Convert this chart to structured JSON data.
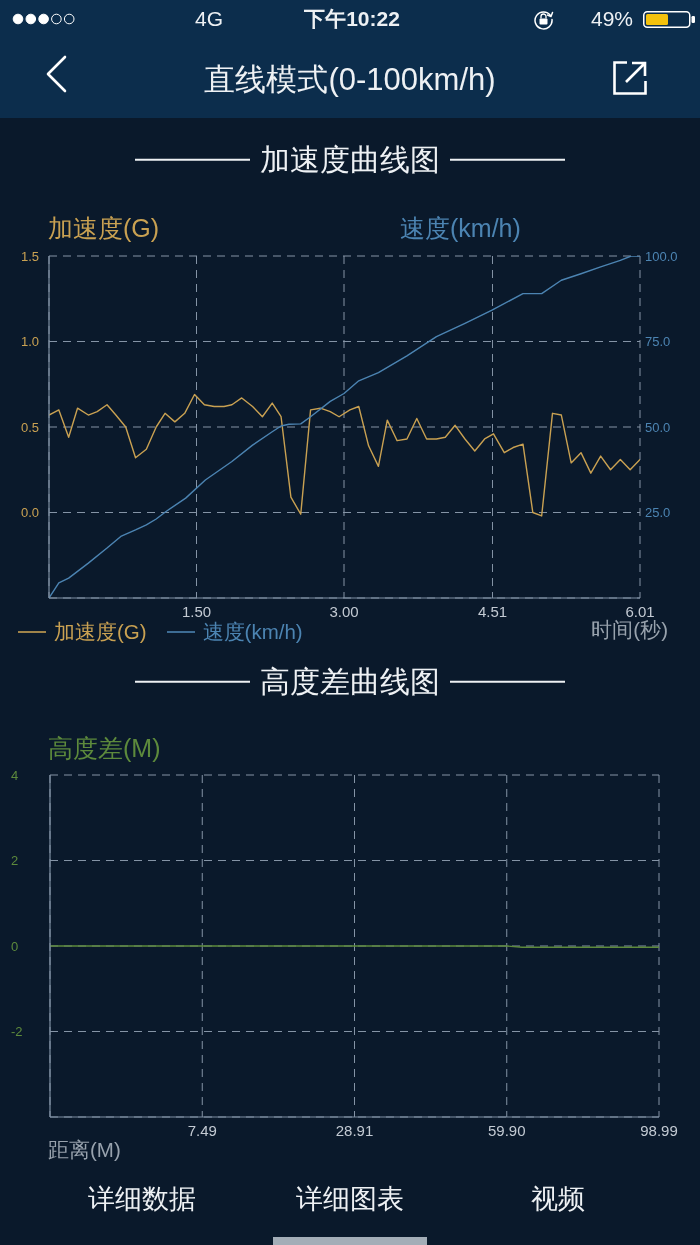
{
  "chart_data": [
    {
      "type": "line",
      "title": "加速度曲线图",
      "xlabel": "时间(秒)",
      "ylabel": "加速度(G)",
      "y2label": "速度(km/h)",
      "xlim": [
        0,
        6.01
      ],
      "xticks": [
        {
          "value": 1.5,
          "label": "1.50"
        },
        {
          "value": 3,
          "label": "3.00"
        },
        4.51,
        6.01
      ],
      "ylim": [
        -0.5,
        1.5
      ],
      "yticks": [
        {
          "value": 0,
          "label": "0.0"
        },
        0.5,
        {
          "value": 1,
          "label": "1.0"
        },
        1.5
      ],
      "y2lim": [
        0,
        100
      ],
      "y2ticks": [
        {
          "value": 25,
          "label": "25.0"
        },
        {
          "value": 50,
          "label": "50.0"
        },
        {
          "value": 75,
          "label": "75.0"
        },
        {
          "value": 100,
          "label": "100.0"
        }
      ],
      "grid": true,
      "legend": "bottom left",
      "series": [
        {
          "name": "加速度(G)",
          "color": "#c9a152",
          "x": [
            0,
            0.1,
            0.2,
            0.29,
            0.4,
            0.49,
            0.59,
            0.68,
            0.78,
            0.88,
            0.99,
            1.09,
            1.18,
            1.28,
            1.38,
            1.48,
            1.58,
            1.68,
            1.78,
            1.86,
            1.96,
            2.07,
            2.17,
            2.27,
            2.36,
            2.46,
            2.56,
            2.66,
            2.76,
            2.86,
            2.95,
            3.06,
            3.15,
            3.25,
            3.35,
            3.44,
            3.54,
            3.64,
            3.74,
            3.84,
            3.94,
            4.03,
            4.13,
            4.23,
            4.33,
            4.43,
            4.52,
            4.63,
            4.72,
            4.82,
            4.92,
            5.01,
            5.12,
            5.21,
            5.31,
            5.41,
            5.51,
            5.61,
            5.71,
            5.81,
            5.91,
            6.01
          ],
          "values": [
            0.57,
            0.6,
            0.44,
            0.61,
            0.57,
            0.59,
            0.63,
            0.57,
            0.5,
            0.32,
            0.37,
            0.5,
            0.58,
            0.53,
            0.58,
            0.69,
            0.63,
            0.62,
            0.62,
            0.63,
            0.67,
            0.62,
            0.56,
            0.64,
            0.56,
            0.09,
            -0.01,
            0.6,
            0.61,
            0.59,
            0.56,
            0.6,
            0.62,
            0.39,
            0.27,
            0.54,
            0.42,
            0.43,
            0.55,
            0.43,
            0.43,
            0.44,
            0.51,
            0.43,
            0.36,
            0.43,
            0.46,
            0.35,
            0.38,
            0.4,
            0.0,
            -0.02,
            0.58,
            0.57,
            0.29,
            0.35,
            0.23,
            0.33,
            0.25,
            0.31,
            0.25,
            0.31
          ]
        },
        {
          "name": "速度(km/h)",
          "color": "#4c84b2",
          "axis": "y2",
          "x": [
            0,
            0.1,
            0.2,
            0.4,
            0.59,
            0.73,
            0.88,
            0.99,
            1.09,
            1.19,
            1.39,
            1.59,
            1.86,
            2.07,
            2.27,
            2.36,
            2.44,
            2.56,
            2.66,
            2.86,
            3.0,
            3.15,
            3.35,
            3.64,
            3.94,
            4.23,
            4.5,
            4.82,
            5.01,
            5.21,
            5.41,
            5.61,
            5.81,
            5.92,
            6.01
          ],
          "values": [
            0,
            4.4,
            5.8,
            10.2,
            14.6,
            18.0,
            19.9,
            21.4,
            23.1,
            25.3,
            29.2,
            34.5,
            39.9,
            44.7,
            48.6,
            50.3,
            50.8,
            50.9,
            53.0,
            57.5,
            59.8,
            63.5,
            65.9,
            70.8,
            76.4,
            80.3,
            84.1,
            89.0,
            89.0,
            92.9,
            94.8,
            96.8,
            98.7,
            100,
            100
          ]
        }
      ],
      "annotations": [
        "4G",
        "下午10:22",
        "49%",
        "直线模式(0-100km/h)"
      ]
    },
    {
      "type": "line",
      "title": "高度差曲线图",
      "xlabel": "距离(M)",
      "ylabel": "高度差(M)",
      "categories": [
        null,
        null,
        null,
        null,
        null,
        null,
        null,
        null,
        null,
        null,
        "7.49",
        null,
        null,
        null,
        null,
        null,
        null,
        null,
        null,
        null,
        "28.91",
        null,
        null,
        null,
        null,
        null,
        null,
        null,
        null,
        null,
        "59.90",
        null,
        null,
        null,
        null,
        null,
        null,
        null,
        null,
        null,
        "98.99"
      ],
      "values": [
        0,
        0,
        0,
        0,
        0,
        0,
        0,
        0,
        0,
        0,
        0,
        0,
        0,
        0,
        0,
        0,
        0,
        0,
        0,
        0,
        0,
        0,
        0,
        0,
        0,
        0,
        0,
        0,
        0,
        0,
        0,
        -0.03,
        -0.03,
        -0.03,
        -0.03,
        -0.03,
        -0.03,
        -0.03,
        -0.03,
        -0.03,
        -0.03
      ],
      "color": "#5d8a3c",
      "ylim": [
        -4,
        4
      ],
      "yticks": [
        -2,
        0,
        2,
        4
      ],
      "grid": true,
      "annotations": [
        "详细数据",
        "详细图表",
        "视频"
      ]
    }
  ]
}
